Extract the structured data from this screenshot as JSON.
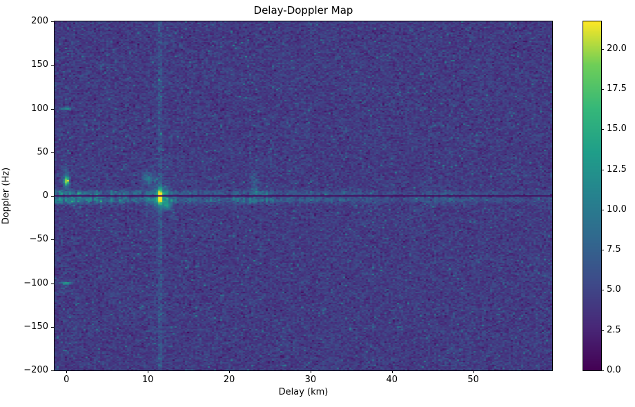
{
  "chart_data": {
    "type": "heatmap",
    "title": "Delay-Doppler Map",
    "xlabel": "Delay (km)",
    "ylabel": "Doppler (Hz)",
    "x_range": [
      -1.47,
      59.7
    ],
    "y_range": [
      -200,
      200
    ],
    "x_ticks": [
      0,
      10,
      20,
      30,
      40,
      50
    ],
    "x_tick_labels": [
      "0",
      "10",
      "20",
      "30",
      "40",
      "50"
    ],
    "y_ticks": [
      200,
      150,
      100,
      50,
      0,
      -50,
      -100,
      -150,
      -200
    ],
    "y_tick_labels": [
      "200",
      "150",
      "100",
      "50",
      "0",
      "−50",
      "−100",
      "−150",
      "−200"
    ],
    "colormap": "viridis",
    "vmin": 0.0,
    "vmax": 21.7,
    "colorbar_ticks": [
      0.0,
      2.5,
      5.0,
      7.5,
      10.0,
      12.5,
      15.0,
      17.5,
      20.0
    ],
    "colorbar_tick_labels": [
      "0.0",
      "2.5",
      "5.0",
      "7.5",
      "10.0",
      "12.5",
      "15.0",
      "17.5",
      "20.0"
    ],
    "legend": "none",
    "grid": false,
    "noise": {
      "mean": 4.3,
      "std": 1.05,
      "speckle_prob": 0.015,
      "speckle_amp": 3.0,
      "seed": 42
    },
    "zero_doppler_null": {
      "doppler_hz": 0,
      "halfwidth_hz": 0.9,
      "value": 0.9
    },
    "delay_stripe": {
      "delay_km": 11.5,
      "halfwidth_km": 0.35,
      "amp": 1.8
    },
    "sidebands": {
      "upper_center_hz": 3.2,
      "upper_sigma_hz": 2.2,
      "lower_center_hz": -4.6,
      "lower_sigma_hz": 2.8,
      "base_amp": 1.6,
      "decay_amp": 8.0,
      "decay_scale_km": 16.0,
      "lower_gain": 1.3,
      "bumps": [
        {
          "delay_km": 23.5,
          "amp": 2.2,
          "sigma_km": 2.0
        },
        {
          "delay_km": 33.5,
          "amp": 1.2,
          "sigma_km": 2.5
        },
        {
          "delay_km": 46.5,
          "amp": 2.0,
          "sigma_km": 1.6
        }
      ]
    },
    "targets": [
      {
        "name": "main-target",
        "delay_km": 11.5,
        "doppler_hz": -1,
        "sigma_km": 0.2,
        "sigma_hz": 6.0,
        "amp": 17.5
      },
      {
        "name": "main-target-glow",
        "delay_km": 11.5,
        "doppler_hz": -1,
        "sigma_km": 0.9,
        "sigma_hz": 9.0,
        "amp": 4.5
      },
      {
        "name": "near-zero-target",
        "delay_km": 0.0,
        "doppler_hz": 17,
        "sigma_km": 0.22,
        "sigma_hz": 3.5,
        "amp": 13.0
      },
      {
        "name": "near-zero-smear",
        "delay_km": 0.0,
        "doppler_hz": 20,
        "sigma_km": 0.28,
        "sigma_hz": 9.0,
        "amp": 3.5
      },
      {
        "name": "doppler-echo-plus100",
        "delay_km": 0.0,
        "doppler_hz": 100,
        "sigma_km": 0.5,
        "sigma_hz": 1.0,
        "amp": 8.5
      },
      {
        "name": "doppler-echo-minus100",
        "delay_km": -0.1,
        "doppler_hz": -100,
        "sigma_km": 0.55,
        "sigma_hz": 1.0,
        "amp": 9.5
      },
      {
        "name": "blob-left-of-target",
        "delay_km": 10.1,
        "doppler_hz": 20,
        "sigma_km": 0.55,
        "sigma_hz": 4.5,
        "amp": 5.0
      },
      {
        "name": "blob-below-target",
        "delay_km": 12.4,
        "doppler_hz": -11,
        "sigma_km": 0.4,
        "sigma_hz": 3.0,
        "amp": 7.0
      },
      {
        "name": "faint-smear-23km",
        "delay_km": 23.2,
        "doppler_hz": 15,
        "sigma_km": 0.35,
        "sigma_hz": 12.0,
        "amp": 2.2
      }
    ]
  }
}
